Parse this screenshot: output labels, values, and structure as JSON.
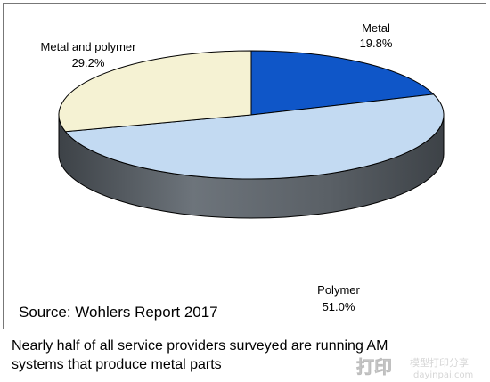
{
  "chart_data": {
    "type": "pie",
    "style": "3d",
    "slices": [
      {
        "label": "Metal",
        "value": 19.8,
        "value_label": "19.8%",
        "color": "#0f56c8"
      },
      {
        "label": "Polymer",
        "value": 51.0,
        "value_label": "51.0%",
        "color": "#c3daf2"
      },
      {
        "label": "Metal and polymer",
        "value": 29.2,
        "value_label": "29.2%",
        "color": "#f5f2d3"
      }
    ],
    "source": "Source: Wohlers Report 2017",
    "side_color": "#5a6066",
    "outline_color": "#000000"
  },
  "caption": "Nearly half of all service providers surveyed are running AM systems that produce metal parts",
  "watermark": {
    "logo_text": "打印",
    "site_name": "模型打印分享",
    "site_url": "dayinpai.com"
  }
}
